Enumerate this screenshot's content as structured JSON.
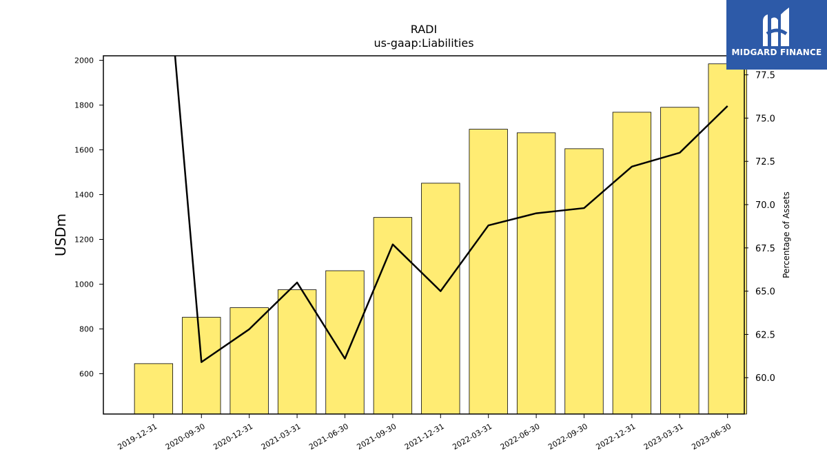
{
  "chart_data": {
    "type": "bar+line",
    "title": "RADI",
    "subtitle": "us-gaap:Liabilities",
    "ylabel": "USDm",
    "y2label": "Percentage of Assets",
    "categories": [
      "2019-12-31",
      "2020-09-30",
      "2020-12-31",
      "2021-03-31",
      "2021-06-30",
      "2021-09-30",
      "2021-12-31",
      "2022-03-31",
      "2022-06-30",
      "2022-09-30",
      "2022-12-31",
      "2023-03-31",
      "2023-06-30"
    ],
    "bar_values": [
      645,
      852,
      895,
      975,
      1060,
      1298,
      1451,
      1692,
      1676,
      1605,
      1768,
      1790,
      1984
    ],
    "line_values": [
      93.0,
      60.9,
      62.8,
      65.5,
      61.1,
      67.7,
      65.0,
      68.8,
      69.5,
      69.8,
      72.2,
      73.0,
      75.7
    ],
    "ylim": [
      420,
      2020
    ],
    "y2lim": [
      57.9,
      78.6
    ],
    "yticks": [
      600,
      800,
      1000,
      1200,
      1400,
      1600,
      1800,
      2000
    ],
    "y2ticks": [
      "60.0",
      "62.5",
      "65.0",
      "67.5",
      "70.0",
      "72.5",
      "75.0",
      "77.5"
    ],
    "bar_color": "#ffec73",
    "line_color": "#000000",
    "grid": false
  },
  "logo": {
    "text": "MIDGARD FINANCE",
    "background": "#2d5aa8"
  }
}
